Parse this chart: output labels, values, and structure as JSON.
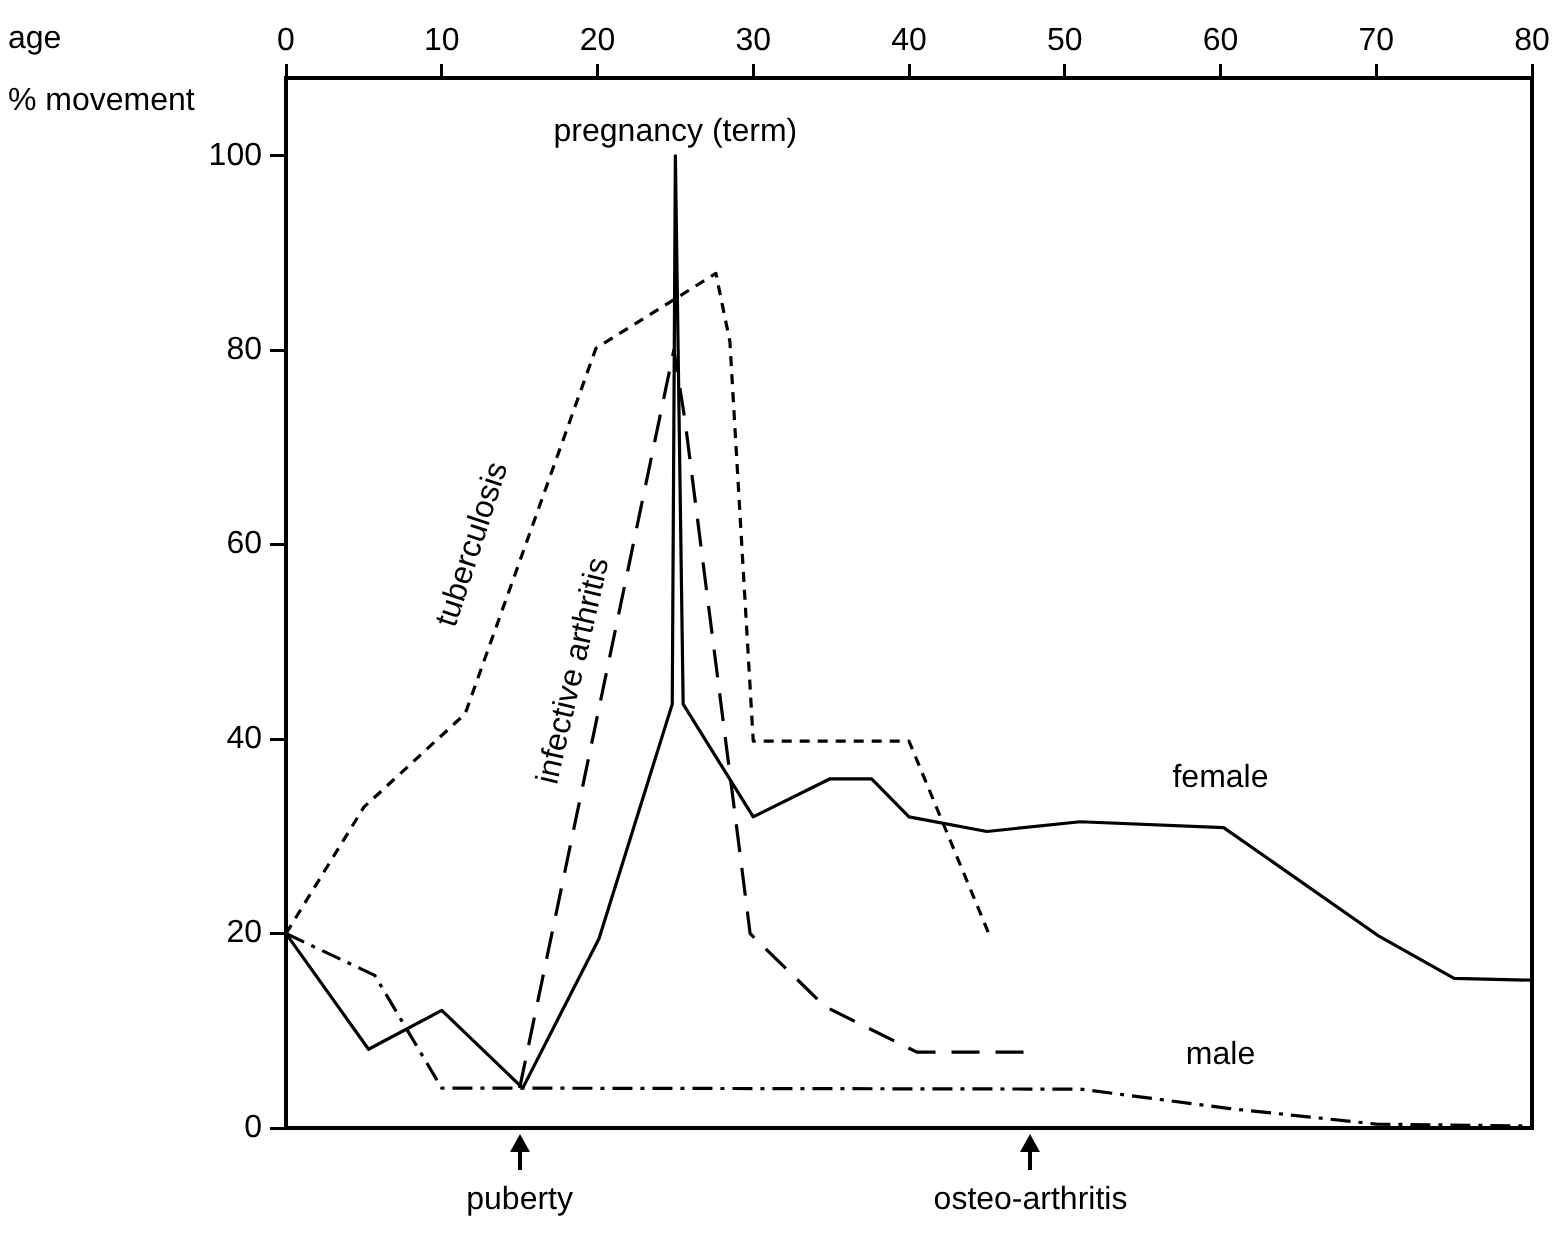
{
  "chart_data": {
    "type": "line",
    "xlabel": "age",
    "ylabel": "% movement",
    "xlim": [
      0,
      80
    ],
    "xticks": [
      0,
      10,
      20,
      30,
      40,
      50,
      60,
      70,
      80
    ],
    "ylim": [
      0,
      108
    ],
    "yticks": [
      0,
      20,
      40,
      60,
      80,
      100
    ],
    "grid": false,
    "legend": false,
    "marker": "none",
    "series": [
      {
        "name": "female",
        "color": "#000000",
        "line_style": "solid",
        "x": [
          0,
          5.3,
          10,
          15.2,
          20.1,
          24.8,
          25,
          25.5,
          30,
          34.9,
          37.6,
          40,
          45,
          51,
          60.2,
          70.2,
          75,
          80
        ],
        "values": [
          20,
          8.1,
          12.1,
          4.1,
          19.5,
          43.6,
          100,
          43.6,
          32,
          35.9,
          35.9,
          32,
          30.5,
          31.5,
          30.9,
          19.7,
          15.4,
          15.2
        ]
      },
      {
        "name": "male",
        "color": "#000000",
        "line_style": "dashdot",
        "x": [
          0,
          5.7,
          10,
          15,
          51,
          60.6,
          70,
          80
        ],
        "values": [
          20,
          15.7,
          4.1,
          4.1,
          4,
          2,
          0.4,
          0.2
        ]
      },
      {
        "name": "tuberculosis",
        "color": "#000000",
        "line_style": "dotted",
        "x": [
          0,
          5,
          11.5,
          19.9,
          27.6,
          28.5,
          30,
          40,
          45.2
        ],
        "values": [
          20,
          33,
          42.6,
          80.2,
          87.9,
          80.9,
          39.8,
          39.8,
          19.7
        ]
      },
      {
        "name": "infective arthritis",
        "color": "#000000",
        "line_style": "dashed",
        "x": [
          15,
          24.9,
          25.6,
          29.8,
          34.6,
          40.5,
          47.7
        ],
        "values": [
          4.1,
          80,
          73,
          20,
          12.5,
          7.8,
          7.8
        ]
      }
    ],
    "annotations": [
      {
        "text": "pregnancy (term)",
        "x": 25,
        "y": 100
      },
      "puberty",
      "osteo-arthritis"
    ]
  }
}
